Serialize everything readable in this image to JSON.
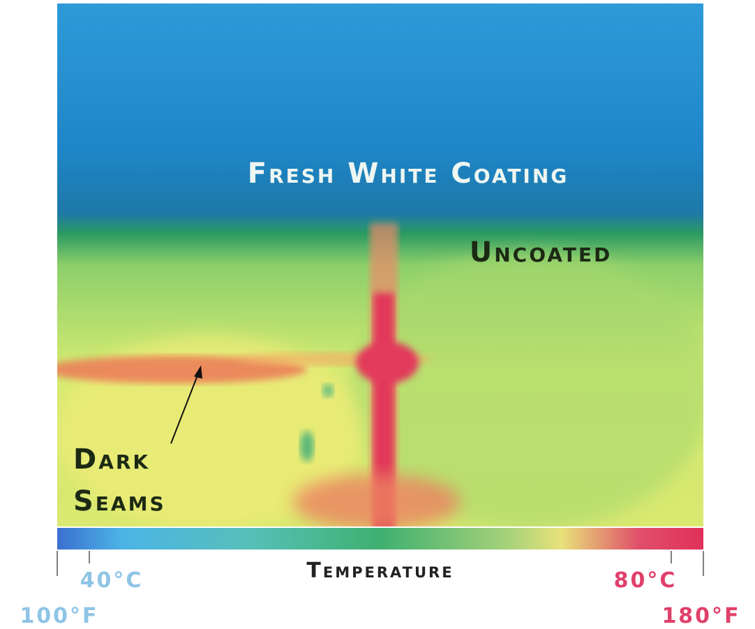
{
  "image": {
    "labels": [
      "Fresh White Coating",
      "Uncoated"
    ],
    "callout": [
      "Dark",
      "Seams"
    ]
  },
  "scale": {
    "title": "Temperature",
    "low": {
      "celsius": "40°C",
      "fahrenheit": "100°F"
    },
    "high": {
      "celsius": "80°C",
      "fahrenheit": "180°F"
    }
  }
}
